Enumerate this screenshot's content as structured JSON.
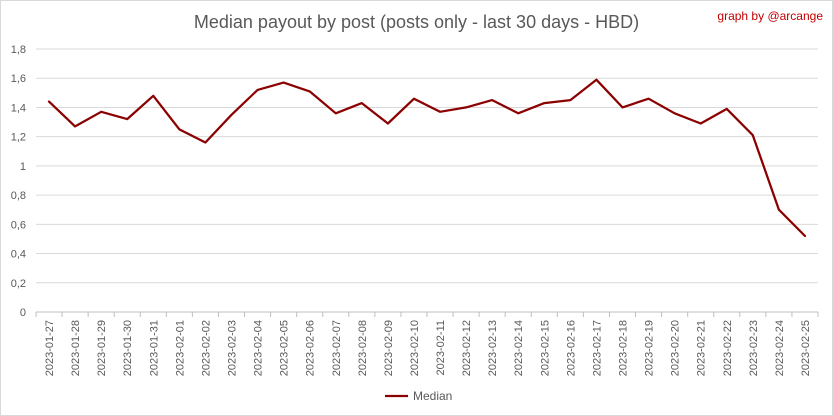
{
  "credit": "graph by @arcange",
  "chart_data": {
    "type": "line",
    "title": "Median payout by post (posts only - last 30 days - HBD)",
    "xlabel": "",
    "ylabel": "",
    "categories": [
      "2023-01-27",
      "2023-01-28",
      "2023-01-29",
      "2023-01-30",
      "2023-01-31",
      "2023-02-01",
      "2023-02-02",
      "2023-02-03",
      "2023-02-04",
      "2023-02-05",
      "2023-02-06",
      "2023-02-07",
      "2023-02-08",
      "2023-02-09",
      "2023-02-10",
      "2023-02-11",
      "2023-02-12",
      "2023-02-13",
      "2023-02-14",
      "2023-02-15",
      "2023-02-16",
      "2023-02-17",
      "2023-02-18",
      "2023-02-19",
      "2023-02-20",
      "2023-02-21",
      "2023-02-22",
      "2023-02-23",
      "2023-02-24",
      "2023-02-25"
    ],
    "series": [
      {
        "name": "Median",
        "color": "#8b0000",
        "values": [
          1.44,
          1.27,
          1.37,
          1.32,
          1.48,
          1.25,
          1.16,
          1.35,
          1.52,
          1.57,
          1.51,
          1.36,
          1.43,
          1.29,
          1.46,
          1.37,
          1.4,
          1.45,
          1.36,
          1.43,
          1.45,
          1.59,
          1.4,
          1.46,
          1.36,
          1.29,
          1.39,
          1.21,
          0.7,
          0.52
        ]
      }
    ],
    "ylim": [
      0,
      1.8
    ],
    "yticks": [
      "0",
      "0,2",
      "0,4",
      "0,6",
      "0,8",
      "1",
      "1,2",
      "1,4",
      "1,6",
      "1,8"
    ],
    "grid": true,
    "legend": "bottom-center"
  }
}
